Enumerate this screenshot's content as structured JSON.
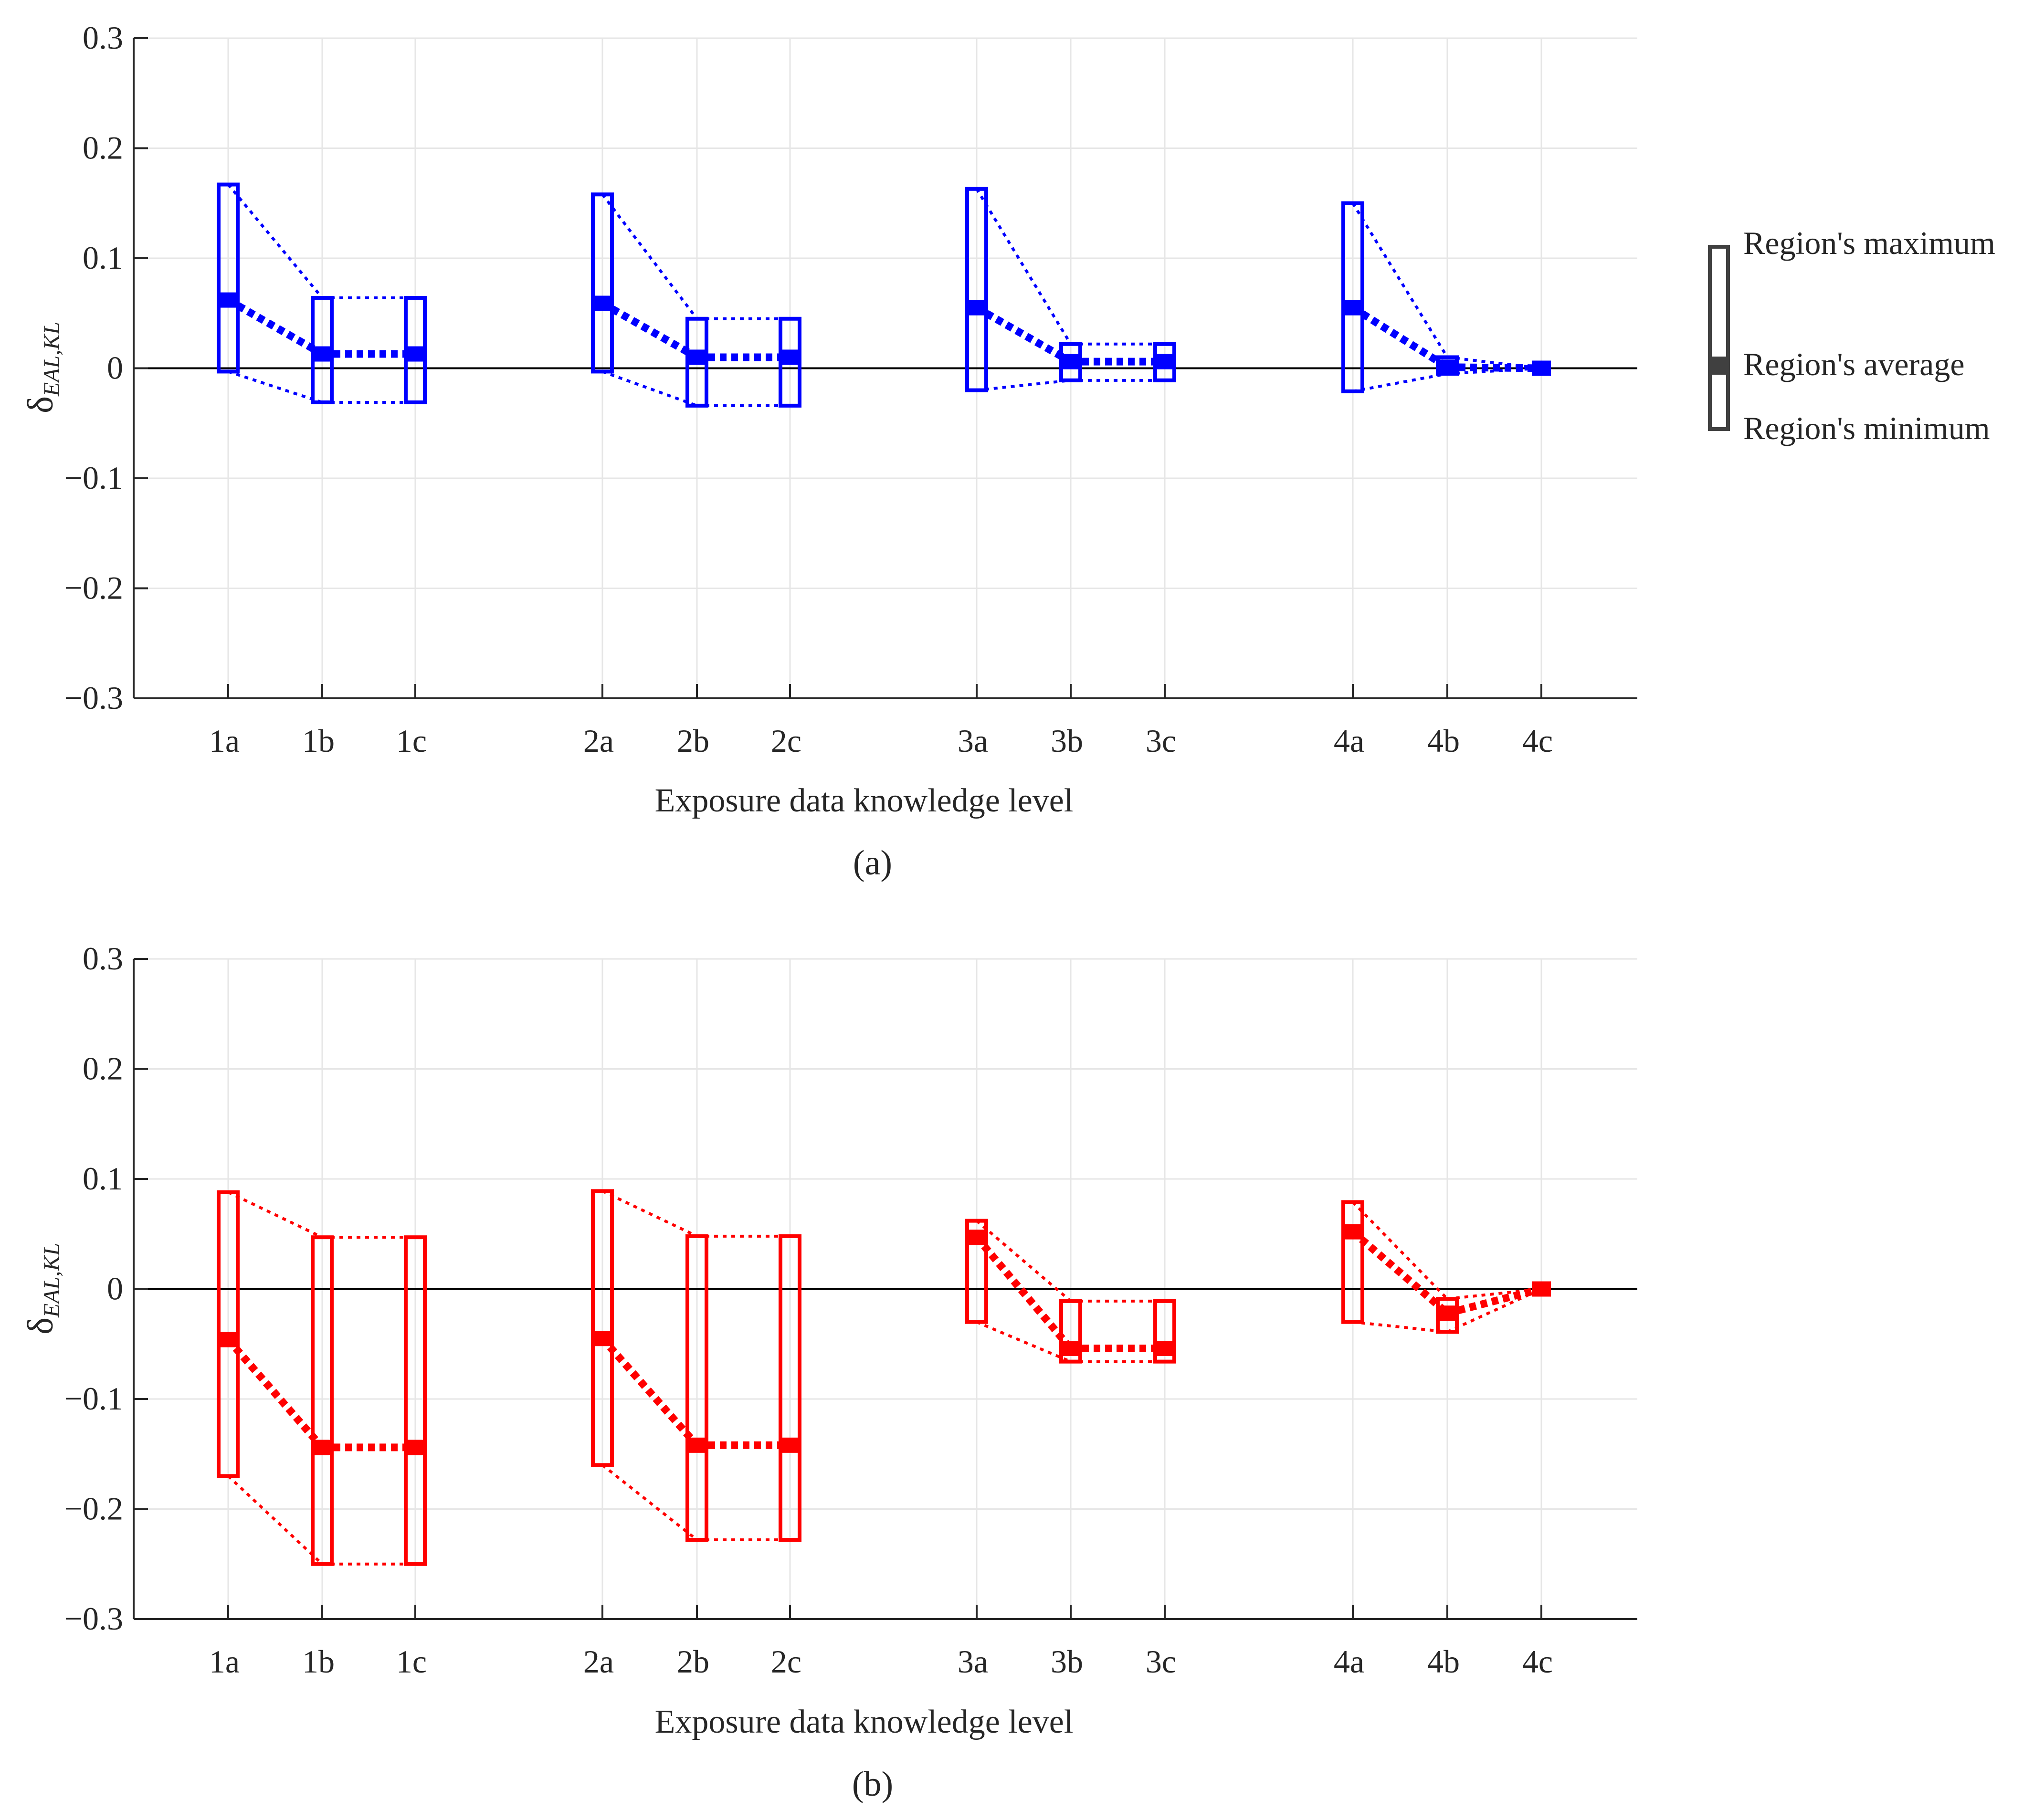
{
  "legend": {
    "max_label": "Region's maximum",
    "avg_label": "Region's average",
    "min_label": "Region's minimum",
    "color": "#404040"
  },
  "chart_data": [
    {
      "id": "a",
      "type": "range-box",
      "caption": "(a)",
      "color": "#0000ff",
      "xlabel": "Exposure data knowledge level",
      "ylabel_main": "δ",
      "ylabel_sub": "EAL,KL",
      "ylim": [
        -0.3,
        0.3
      ],
      "yticks": [
        -0.3,
        -0.2,
        -0.1,
        0,
        0.1,
        0.2,
        0.3
      ],
      "ytick_labels": [
        "−0.3",
        "−0.2",
        "−0.1",
        "0",
        "0.1",
        "0.2",
        "0.3"
      ],
      "categories": [
        "1a",
        "1b",
        "1c",
        "2a",
        "2b",
        "2c",
        "3a",
        "3b",
        "3c",
        "4a",
        "4b",
        "4c"
      ],
      "groups": [
        [
          0,
          1,
          2
        ],
        [
          3,
          4,
          5
        ],
        [
          6,
          7,
          8
        ],
        [
          9,
          10,
          11
        ]
      ],
      "series": [
        {
          "name": "Region's maximum",
          "values": [
            0.167,
            0.064,
            0.064,
            0.158,
            0.045,
            0.045,
            0.163,
            0.022,
            0.022,
            0.15,
            0.01,
            0.0
          ]
        },
        {
          "name": "Region's average",
          "values": [
            0.062,
            0.013,
            0.013,
            0.059,
            0.01,
            0.01,
            0.055,
            0.006,
            0.006,
            0.055,
            0.001,
            0.0
          ]
        },
        {
          "name": "Region's minimum",
          "values": [
            -0.003,
            -0.031,
            -0.031,
            -0.003,
            -0.034,
            -0.034,
            -0.02,
            -0.011,
            -0.011,
            -0.021,
            -0.005,
            0.0
          ]
        }
      ]
    },
    {
      "id": "b",
      "type": "range-box",
      "caption": "(b)",
      "color": "#ff0000",
      "xlabel": "Exposure data knowledge level",
      "ylabel_main": "δ",
      "ylabel_sub": "EAL,KL",
      "ylim": [
        -0.3,
        0.3
      ],
      "yticks": [
        -0.3,
        -0.2,
        -0.1,
        0,
        0.1,
        0.2,
        0.3
      ],
      "ytick_labels": [
        "−0.3",
        "−0.2",
        "−0.1",
        "0",
        "0.1",
        "0.2",
        "0.3"
      ],
      "categories": [
        "1a",
        "1b",
        "1c",
        "2a",
        "2b",
        "2c",
        "3a",
        "3b",
        "3c",
        "4a",
        "4b",
        "4c"
      ],
      "groups": [
        [
          0,
          1,
          2
        ],
        [
          3,
          4,
          5
        ],
        [
          6,
          7,
          8
        ],
        [
          9,
          10,
          11
        ]
      ],
      "series": [
        {
          "name": "Region's maximum",
          "values": [
            0.088,
            0.047,
            0.047,
            0.089,
            0.048,
            0.048,
            0.062,
            -0.011,
            -0.011,
            0.079,
            -0.009,
            0.0
          ]
        },
        {
          "name": "Region's average",
          "values": [
            -0.046,
            -0.144,
            -0.144,
            -0.045,
            -0.142,
            -0.142,
            0.047,
            -0.054,
            -0.054,
            0.052,
            -0.022,
            0.0
          ]
        },
        {
          "name": "Region's minimum",
          "values": [
            -0.17,
            -0.25,
            -0.25,
            -0.16,
            -0.228,
            -0.228,
            -0.03,
            -0.066,
            -0.066,
            -0.03,
            -0.039,
            0.0
          ]
        }
      ]
    }
  ]
}
